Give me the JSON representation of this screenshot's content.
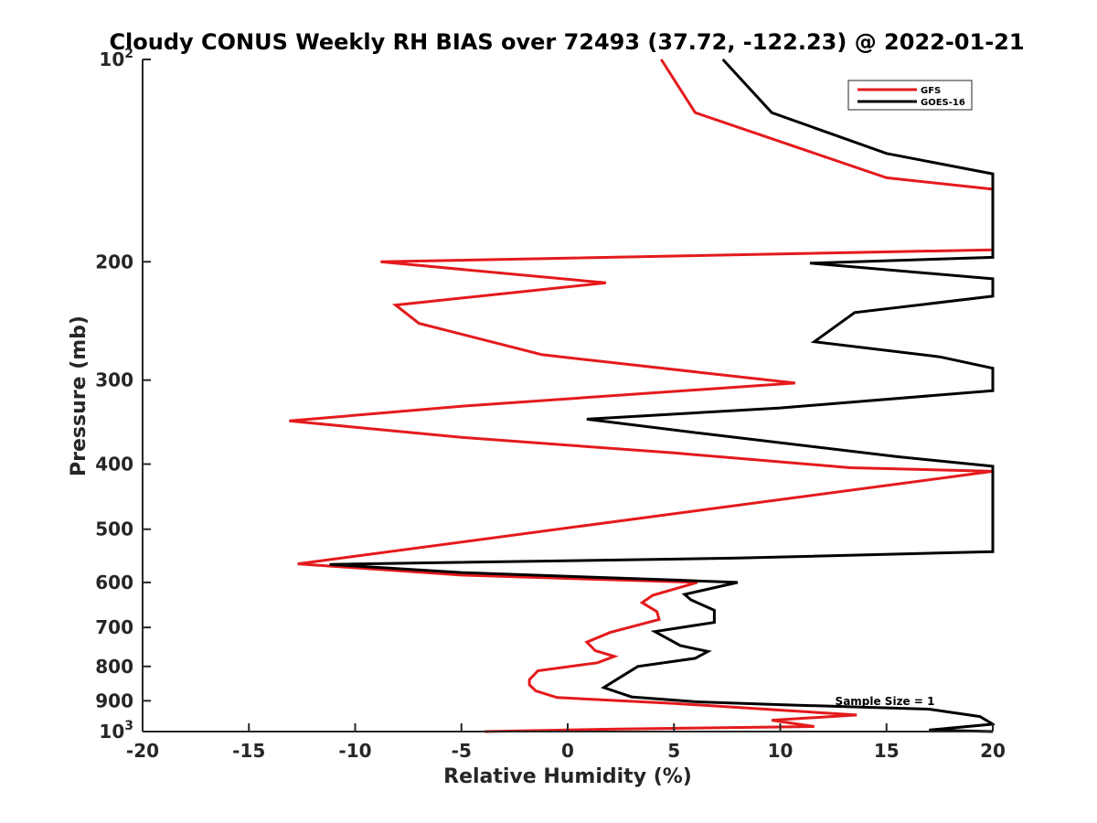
{
  "chart_data": {
    "type": "line",
    "title": "Cloudy CONUS Weekly RH BIAS over 72493 (37.72, -122.23) @ 2022-01-21",
    "xlabel": "Relative Humidity (%)",
    "ylabel": "Pressure (mb)",
    "xlim": [
      -20,
      20
    ],
    "ylim": [
      100,
      1000
    ],
    "yscale": "log",
    "y_reversed": true,
    "grid": false,
    "legend_position": "top-right",
    "xticks": [
      -20,
      -15,
      -10,
      -5,
      0,
      5,
      10,
      15,
      20
    ],
    "xtick_labels": [
      "-20",
      "-15",
      "-10",
      "-5",
      "0",
      "5",
      "10",
      "15",
      "20"
    ],
    "yticks": [
      100,
      200,
      300,
      400,
      500,
      600,
      700,
      800,
      900,
      1000
    ],
    "ytick_labels": [
      {
        "value": 100,
        "base": "10",
        "exp": "2"
      },
      {
        "value": 200,
        "base": "200",
        "exp": ""
      },
      {
        "value": 300,
        "base": "300",
        "exp": ""
      },
      {
        "value": 400,
        "base": "400",
        "exp": ""
      },
      {
        "value": 500,
        "base": "500",
        "exp": ""
      },
      {
        "value": 600,
        "base": "600",
        "exp": ""
      },
      {
        "value": 700,
        "base": "700",
        "exp": ""
      },
      {
        "value": 800,
        "base": "800",
        "exp": ""
      },
      {
        "value": 900,
        "base": "900",
        "exp": ""
      },
      {
        "value": 1000,
        "base": "10",
        "exp": "3"
      }
    ],
    "annotation": "Sample Size = 1",
    "series": [
      {
        "name": "GFS",
        "color": "#e41a1c",
        "points": [
          [
            4.4,
            100
          ],
          [
            6.0,
            120
          ],
          [
            15.0,
            150
          ],
          [
            20.0,
            156
          ],
          [
            20.0,
            192
          ],
          [
            -8.8,
            200
          ],
          [
            1.8,
            215
          ],
          [
            -8.1,
            232
          ],
          [
            -7.0,
            247
          ],
          [
            -1.2,
            275
          ],
          [
            10.7,
            303
          ],
          [
            -5.0,
            328
          ],
          [
            -13.1,
            345
          ],
          [
            -5.0,
            365
          ],
          [
            5.0,
            385
          ],
          [
            13.3,
            405
          ],
          [
            20.0,
            410
          ],
          [
            -12.7,
            563
          ],
          [
            -5.0,
            585
          ],
          [
            6.1,
            600
          ],
          [
            4.0,
            627
          ],
          [
            3.5,
            643
          ],
          [
            4.2,
            663
          ],
          [
            4.3,
            681
          ],
          [
            2.0,
            712
          ],
          [
            0.9,
            736
          ],
          [
            1.3,
            758
          ],
          [
            2.2,
            773
          ],
          [
            1.4,
            790
          ],
          [
            -1.4,
            812
          ],
          [
            -1.8,
            837
          ],
          [
            -1.8,
            852
          ],
          [
            -1.5,
            870
          ],
          [
            -0.5,
            890
          ],
          [
            5.0,
            908
          ],
          [
            13.6,
            945
          ],
          [
            9.6,
            962
          ],
          [
            11.6,
            983
          ],
          [
            2.0,
            992
          ],
          [
            -3.9,
            1000
          ]
        ]
      },
      {
        "name": "GOES-16",
        "color": "#000000",
        "points": [
          [
            7.3,
            100
          ],
          [
            9.6,
            120
          ],
          [
            15.0,
            138
          ],
          [
            20.0,
            148
          ],
          [
            20.0,
            197
          ],
          [
            11.4,
            201
          ],
          [
            20.0,
            212
          ],
          [
            20.0,
            225
          ],
          [
            13.5,
            238
          ],
          [
            11.6,
            263
          ],
          [
            17.5,
            277
          ],
          [
            20.0,
            288
          ],
          [
            20.0,
            311
          ],
          [
            10.0,
            330
          ],
          [
            0.9,
            343
          ],
          [
            6.3,
            360
          ],
          [
            15.5,
            390
          ],
          [
            20.0,
            403
          ],
          [
            20.0,
            540
          ],
          [
            8.0,
            552
          ],
          [
            -11.2,
            564
          ],
          [
            -5.0,
            580
          ],
          [
            5.0,
            595
          ],
          [
            8.0,
            600
          ],
          [
            5.5,
            625
          ],
          [
            5.8,
            637
          ],
          [
            6.9,
            660
          ],
          [
            6.9,
            688
          ],
          [
            4.1,
            710
          ],
          [
            5.3,
            745
          ],
          [
            6.6,
            760
          ],
          [
            6.0,
            778
          ],
          [
            3.3,
            800
          ],
          [
            2.4,
            833
          ],
          [
            1.7,
            860
          ],
          [
            3.0,
            888
          ],
          [
            6.0,
            903
          ],
          [
            10.0,
            912
          ],
          [
            17.0,
            926
          ],
          [
            19.4,
            950
          ],
          [
            20.0,
            975
          ],
          [
            17.0,
            995
          ],
          [
            20.0,
            1000
          ]
        ]
      }
    ]
  }
}
